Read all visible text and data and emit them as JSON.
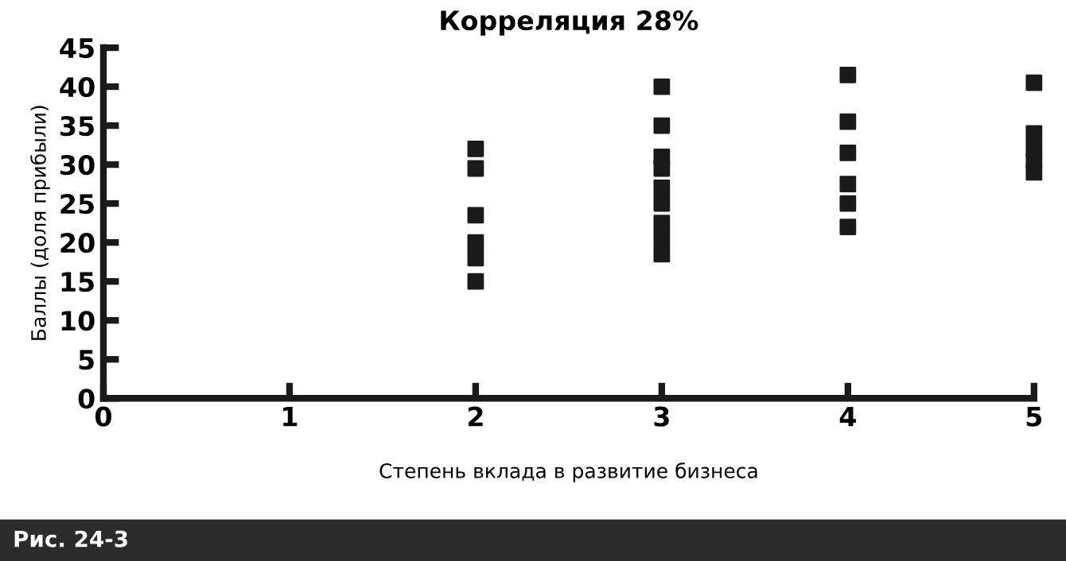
{
  "chart_data": {
    "type": "scatter",
    "title": "Корреляция 28%",
    "xlabel": "Степень вклада в развитие бизнеса",
    "ylabel": "Баллы (доля прибыли)",
    "series": [
      {
        "color": "#1a1a1a",
        "x": [
          2,
          2,
          2,
          2,
          2,
          2,
          3,
          3,
          3,
          3,
          3,
          3,
          3,
          3,
          3,
          4,
          4,
          4,
          4,
          4,
          4,
          5,
          5,
          5,
          5,
          5
        ],
        "values": [
          32,
          29.5,
          23.5,
          20,
          18,
          15,
          40,
          35,
          31,
          29.5,
          27,
          25,
          22.5,
          20.5,
          18.5,
          41.5,
          35.5,
          31.5,
          27.5,
          25,
          22,
          40.5,
          34,
          32,
          30.5,
          29
        ]
      }
    ],
    "xlim": [
      0,
      5
    ],
    "ylim": [
      0,
      45
    ],
    "xticks": [
      0,
      1,
      2,
      3,
      4,
      5
    ],
    "yticks": [
      0,
      5,
      10,
      15,
      20,
      25,
      30,
      35,
      40,
      45
    ],
    "marker": "square",
    "grid": false,
    "legend": false,
    "annotations": [
      "Рис. 24-3"
    ]
  }
}
